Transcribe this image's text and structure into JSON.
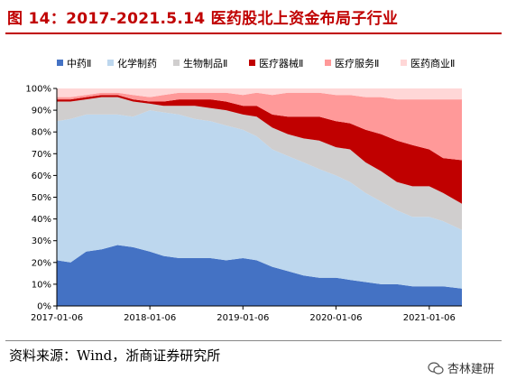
{
  "title": "图 14：2017-2021.5.14 医药股北上资金布局子行业",
  "source": "资料来源：Wind，浙商证券研究所",
  "watermark": "杏林建研",
  "chart_data": {
    "type": "area",
    "stacked": true,
    "title": "图 14：2017-2021.5.14 医药股北上资金布局子行业",
    "xlabel": "",
    "ylabel": "",
    "ylim": [
      0,
      100
    ],
    "y_unit": "%",
    "y_ticks": [
      "0%",
      "10%",
      "20%",
      "30%",
      "40%",
      "50%",
      "60%",
      "70%",
      "80%",
      "90%",
      "100%"
    ],
    "x_range": [
      "2017-01-06",
      "2021-05-14"
    ],
    "x_ticks": [
      "2017-01-06",
      "2018-01-06",
      "2019-01-06",
      "2020-01-06",
      "2021-01-06"
    ],
    "grid": false,
    "legend_position": "top",
    "x": [
      "2017-01-06",
      "2017-03-01",
      "2017-05-01",
      "2017-07-01",
      "2017-09-01",
      "2017-11-01",
      "2018-01-06",
      "2018-03-01",
      "2018-05-01",
      "2018-07-01",
      "2018-09-01",
      "2018-11-01",
      "2019-01-06",
      "2019-03-01",
      "2019-05-01",
      "2019-07-01",
      "2019-09-01",
      "2019-11-01",
      "2020-01-06",
      "2020-03-01",
      "2020-05-01",
      "2020-07-01",
      "2020-09-01",
      "2020-11-01",
      "2021-01-06",
      "2021-03-01",
      "2021-05-14"
    ],
    "series": [
      {
        "name": "中药Ⅱ",
        "color": "#4472c4",
        "values": [
          21,
          20,
          25,
          26,
          28,
          27,
          25,
          23,
          22,
          22,
          22,
          21,
          22,
          21,
          18,
          16,
          14,
          13,
          13,
          12,
          11,
          10,
          10,
          9,
          9,
          9,
          8
        ]
      },
      {
        "name": "化学制药",
        "color": "#bdd7ee",
        "values": [
          64,
          66,
          63,
          62,
          60,
          60,
          65,
          66,
          66,
          64,
          63,
          62,
          59,
          57,
          54,
          53,
          52,
          50,
          47,
          45,
          41,
          38,
          34,
          32,
          32,
          30,
          27
        ]
      },
      {
        "name": "生物制品Ⅱ",
        "color": "#d0cece",
        "values": [
          9,
          8,
          7,
          8,
          8,
          7,
          3,
          3,
          4,
          6,
          6,
          7,
          7,
          9,
          10,
          10,
          11,
          13,
          13,
          15,
          14,
          14,
          13,
          14,
          14,
          13,
          12
        ]
      },
      {
        "name": "医疗器械Ⅱ",
        "color": "#c00000",
        "values": [
          1,
          1,
          1,
          1,
          1,
          1,
          1,
          2,
          3,
          3,
          4,
          4,
          4,
          5,
          6,
          8,
          10,
          11,
          12,
          12,
          15,
          17,
          19,
          19,
          17,
          16,
          20
        ]
      },
      {
        "name": "医疗服务Ⅱ",
        "color": "#ff9999",
        "values": [
          1,
          1,
          1,
          1,
          1,
          2,
          2,
          3,
          3,
          3,
          3,
          4,
          5,
          6,
          9,
          11,
          11,
          11,
          12,
          13,
          15,
          17,
          19,
          21,
          23,
          27,
          28
        ]
      },
      {
        "name": "医药商业Ⅱ",
        "color": "#ffd7d7",
        "values": [
          4,
          4,
          3,
          2,
          2,
          3,
          4,
          3,
          2,
          2,
          2,
          2,
          3,
          2,
          3,
          2,
          2,
          2,
          3,
          3,
          4,
          4,
          5,
          5,
          5,
          5,
          5
        ]
      }
    ]
  }
}
